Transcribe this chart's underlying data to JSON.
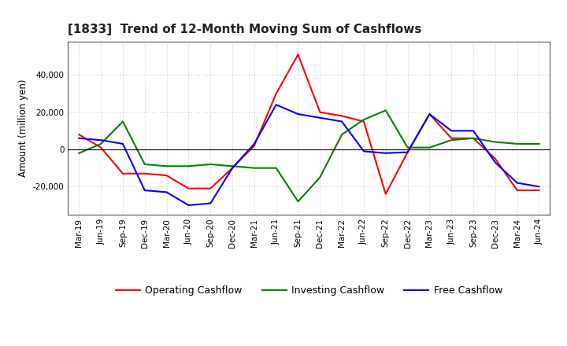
{
  "title": "[1833]  Trend of 12-Month Moving Sum of Cashflows",
  "ylabel": "Amount (million yen)",
  "x_labels": [
    "Mar-19",
    "Jun-19",
    "Sep-19",
    "Dec-19",
    "Mar-20",
    "Jun-20",
    "Sep-20",
    "Dec-20",
    "Mar-21",
    "Jun-21",
    "Sep-21",
    "Dec-21",
    "Mar-22",
    "Jun-22",
    "Sep-22",
    "Dec-22",
    "Mar-23",
    "Jun-23",
    "Sep-23",
    "Dec-23",
    "Mar-24",
    "Jun-24"
  ],
  "operating_cashflow": [
    8000,
    1000,
    -13000,
    -13000,
    -14000,
    -21000,
    -21000,
    -10000,
    2000,
    30000,
    51000,
    20000,
    18000,
    15000,
    -24000,
    -1500,
    19000,
    6000,
    6000,
    -5000,
    -22000,
    -22000
  ],
  "investing_cashflow": [
    -2000,
    3000,
    15000,
    -8000,
    -9000,
    -9000,
    -8000,
    -9000,
    -10000,
    -10000,
    -28000,
    -15000,
    8000,
    16000,
    21000,
    1000,
    1000,
    5000,
    6000,
    4000,
    3000,
    3000
  ],
  "free_cashflow": [
    6000,
    5000,
    3000,
    -22000,
    -23000,
    -30000,
    -29000,
    -10000,
    3000,
    24000,
    19000,
    17000,
    15000,
    -1000,
    -2000,
    -1500,
    19000,
    10000,
    10000,
    -7000,
    -18000,
    -20000
  ],
  "operating_color": "#ff0000",
  "investing_color": "#008000",
  "free_color": "#0000ff",
  "ylim": [
    -35000,
    58000
  ],
  "yticks": [
    -20000,
    0,
    20000,
    40000
  ],
  "grid_color": "#aaaaaa",
  "bg_color": "#ffffff",
  "legend_labels": [
    "Operating Cashflow",
    "Investing Cashflow",
    "Free Cashflow"
  ]
}
